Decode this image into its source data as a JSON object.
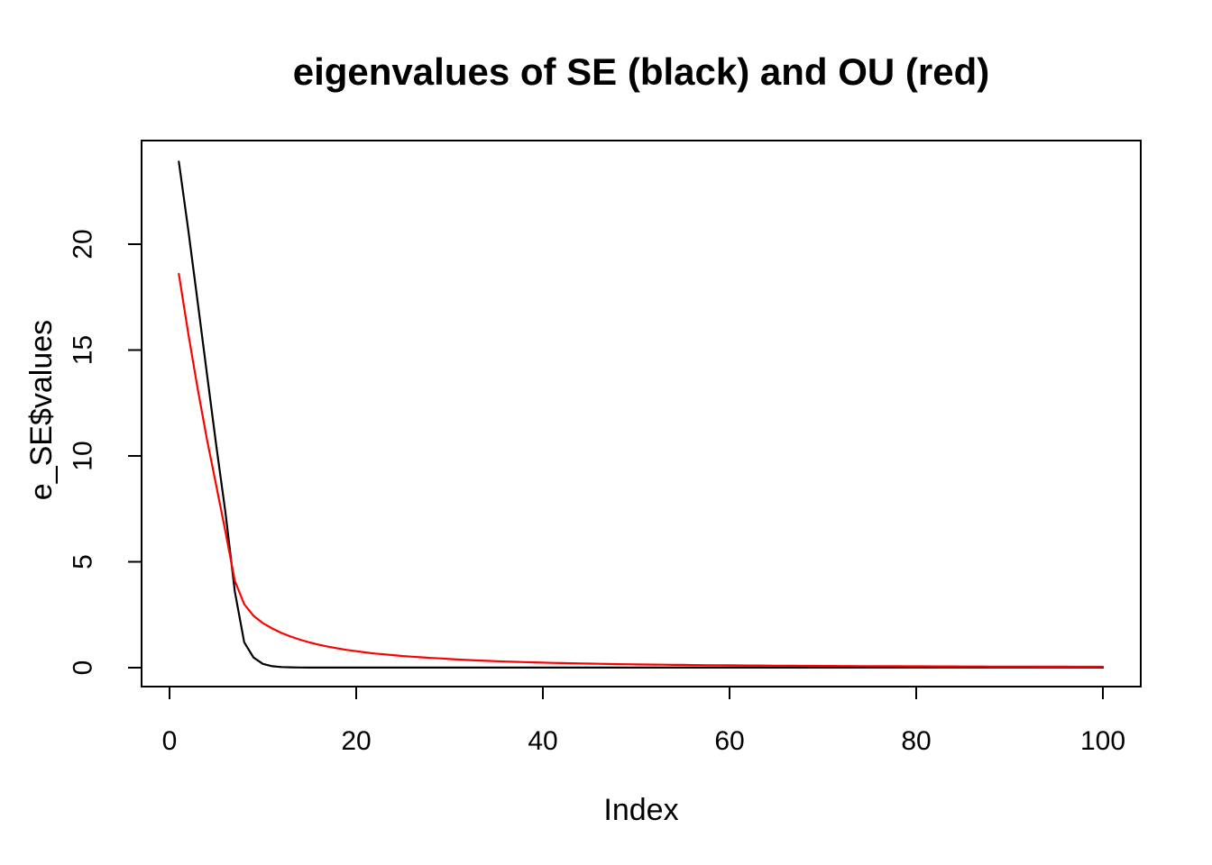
{
  "window": {
    "background_color": "#ffffff",
    "foreground_color": "#000000"
  },
  "chart_data": {
    "type": "line",
    "title": "eigenvalues of SE (black) and OU (red)",
    "xlabel": "Index",
    "ylabel": "e_SE$values",
    "x_ticks": [
      0,
      20,
      40,
      60,
      80,
      100
    ],
    "y_ticks": [
      0,
      5,
      10,
      15,
      20
    ],
    "xlim": [
      0,
      104
    ],
    "ylim": [
      0,
      25
    ],
    "grid": false,
    "legend_position": "none",
    "x": [
      1,
      2,
      3,
      4,
      5,
      6,
      7,
      8,
      9,
      10,
      11,
      12,
      13,
      14,
      15,
      16,
      17,
      18,
      19,
      20,
      21,
      22,
      23,
      24,
      25,
      26,
      27,
      28,
      29,
      30,
      31,
      32,
      33,
      34,
      35,
      36,
      37,
      38,
      39,
      40,
      41,
      42,
      43,
      44,
      45,
      46,
      47,
      48,
      49,
      50,
      51,
      52,
      53,
      54,
      55,
      56,
      57,
      58,
      59,
      60,
      61,
      62,
      63,
      64,
      65,
      66,
      67,
      68,
      69,
      70,
      71,
      72,
      73,
      74,
      75,
      76,
      77,
      78,
      79,
      80,
      81,
      82,
      83,
      84,
      85,
      86,
      87,
      88,
      89,
      90,
      91,
      92,
      93,
      94,
      95,
      96,
      97,
      98,
      99,
      100
    ],
    "series": [
      {
        "id": "se",
        "name": "SE (black)",
        "color": "#000000",
        "values": [
          23.9,
          20.7,
          17.3,
          13.9,
          10.5,
          7.3,
          3.6,
          1.2,
          0.48,
          0.18,
          0.07,
          0.03,
          0.015,
          0.008,
          0.005,
          0.004,
          0.003,
          0.003,
          0.003,
          0.003,
          0.003,
          0.003,
          0.003,
          0.003,
          0.003,
          0.003,
          0.003,
          0.003,
          0.003,
          0.003,
          0.003,
          0.003,
          0.003,
          0.003,
          0.003,
          0.003,
          0.003,
          0.003,
          0.003,
          0.003,
          0.003,
          0.003,
          0.003,
          0.003,
          0.003,
          0.003,
          0.003,
          0.003,
          0.003,
          0.003,
          0.003,
          0.003,
          0.003,
          0.003,
          0.003,
          0.003,
          0.003,
          0.003,
          0.003,
          0.003,
          0.003,
          0.003,
          0.003,
          0.003,
          0.003,
          0.003,
          0.003,
          0.003,
          0.003,
          0.003,
          0.003,
          0.003,
          0.003,
          0.003,
          0.003,
          0.003,
          0.003,
          0.003,
          0.003,
          0.003,
          0.003,
          0.003,
          0.003,
          0.003,
          0.003,
          0.003,
          0.003,
          0.003,
          0.003,
          0.003,
          0.003,
          0.003,
          0.003,
          0.003,
          0.003,
          0.003,
          0.003,
          0.003,
          0.003,
          0.003
        ]
      },
      {
        "id": "ou",
        "name": "OU (red)",
        "color": "#ff0000",
        "values": [
          18.6,
          15.8,
          13.2,
          10.8,
          8.6,
          6.4,
          4.1,
          3.0,
          2.45,
          2.1,
          1.85,
          1.64,
          1.47,
          1.32,
          1.19,
          1.08,
          0.99,
          0.91,
          0.84,
          0.78,
          0.72,
          0.67,
          0.63,
          0.59,
          0.55,
          0.52,
          0.49,
          0.46,
          0.44,
          0.41,
          0.385,
          0.363,
          0.342,
          0.323,
          0.306,
          0.29,
          0.275,
          0.262,
          0.249,
          0.237,
          0.226,
          0.216,
          0.207,
          0.198,
          0.19,
          0.182,
          0.175,
          0.168,
          0.161,
          0.155,
          0.149,
          0.144,
          0.139,
          0.134,
          0.13,
          0.125,
          0.121,
          0.117,
          0.113,
          0.11,
          0.106,
          0.103,
          0.1,
          0.097,
          0.094,
          0.092,
          0.089,
          0.087,
          0.084,
          0.082,
          0.08,
          0.078,
          0.076,
          0.074,
          0.072,
          0.07,
          0.068,
          0.067,
          0.065,
          0.064,
          0.062,
          0.061,
          0.059,
          0.058,
          0.057,
          0.055,
          0.054,
          0.053,
          0.052,
          0.051,
          0.05,
          0.049,
          0.048,
          0.047,
          0.046,
          0.045,
          0.044,
          0.043,
          0.042,
          0.042
        ]
      }
    ]
  }
}
